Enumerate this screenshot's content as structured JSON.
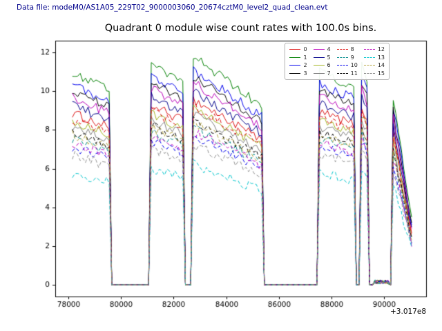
{
  "header": {
    "data_file_label": "Data file: modeM0/AS1A05_229T02_9000003060_20674cztM0_level2_quad_clean.evt"
  },
  "chart_data": {
    "type": "line",
    "title": "Quadrant 0 module wise count rates with 100.0s bins.",
    "xlabel": "",
    "ylabel": "",
    "x_offset_label": "+3.017e8",
    "xlim": [
      77500,
      91600
    ],
    "ylim": [
      -0.6,
      12.6
    ],
    "xticks": [
      78000,
      80000,
      82000,
      84000,
      86000,
      88000,
      90000
    ],
    "yticks": [
      0,
      2,
      4,
      6,
      8,
      10,
      12
    ],
    "grid": false,
    "legend_position": "upper right",
    "legend_ncol": 4,
    "bin_seconds": 100,
    "x_start": 78150,
    "x_end": 91060,
    "active_segments": [
      [
        78150,
        79620
      ],
      [
        81140,
        82410
      ],
      [
        82660,
        85440
      ],
      [
        87460,
        88930
      ],
      [
        89060,
        89350
      ],
      [
        90260,
        91060
      ]
    ],
    "segment_start_factors": [
      1.03,
      1.08,
      1.12,
      1.04,
      1.1,
      1.0
    ],
    "segment_end_factors": [
      0.94,
      0.98,
      0.86,
      0.96,
      1.0,
      0.3
    ],
    "low_activity_segment": {
      "range": [
        89600,
        90200
      ],
      "level": 0.15
    },
    "noise_amplitude": 0.5,
    "series": [
      {
        "name": "0",
        "color": "#dd1111",
        "dash": false,
        "level": 8.6
      },
      {
        "name": "1",
        "color": "#008000",
        "dash": false,
        "level": 10.6
      },
      {
        "name": "2",
        "color": "#0000ee",
        "dash": false,
        "level": 10.0
      },
      {
        "name": "3",
        "color": "#000000",
        "dash": false,
        "level": 9.7
      },
      {
        "name": "4",
        "color": "#bb00bb",
        "dash": false,
        "level": 9.4
      },
      {
        "name": "5",
        "color": "#00008b",
        "dash": false,
        "level": 9.0
      },
      {
        "name": "6",
        "color": "#a2b520",
        "dash": false,
        "level": 8.2
      },
      {
        "name": "7",
        "color": "#808080",
        "dash": false,
        "level": 7.9
      },
      {
        "name": "8",
        "color": "#dd1111",
        "dash": true,
        "level": 8.3
      },
      {
        "name": "9",
        "color": "#008b8b",
        "dash": true,
        "level": 7.3
      },
      {
        "name": "10",
        "color": "#0000ee",
        "dash": true,
        "level": 6.9
      },
      {
        "name": "11",
        "color": "#000000",
        "dash": true,
        "level": 7.6
      },
      {
        "name": "12",
        "color": "#bb00bb",
        "dash": true,
        "level": 7.1
      },
      {
        "name": "13",
        "color": "#00c5cd",
        "dash": true,
        "level": 5.6
      },
      {
        "name": "14",
        "color": "#b5a642",
        "dash": true,
        "level": 7.5
      },
      {
        "name": "15",
        "color": "#909090",
        "dash": true,
        "level": 6.5
      }
    ]
  }
}
